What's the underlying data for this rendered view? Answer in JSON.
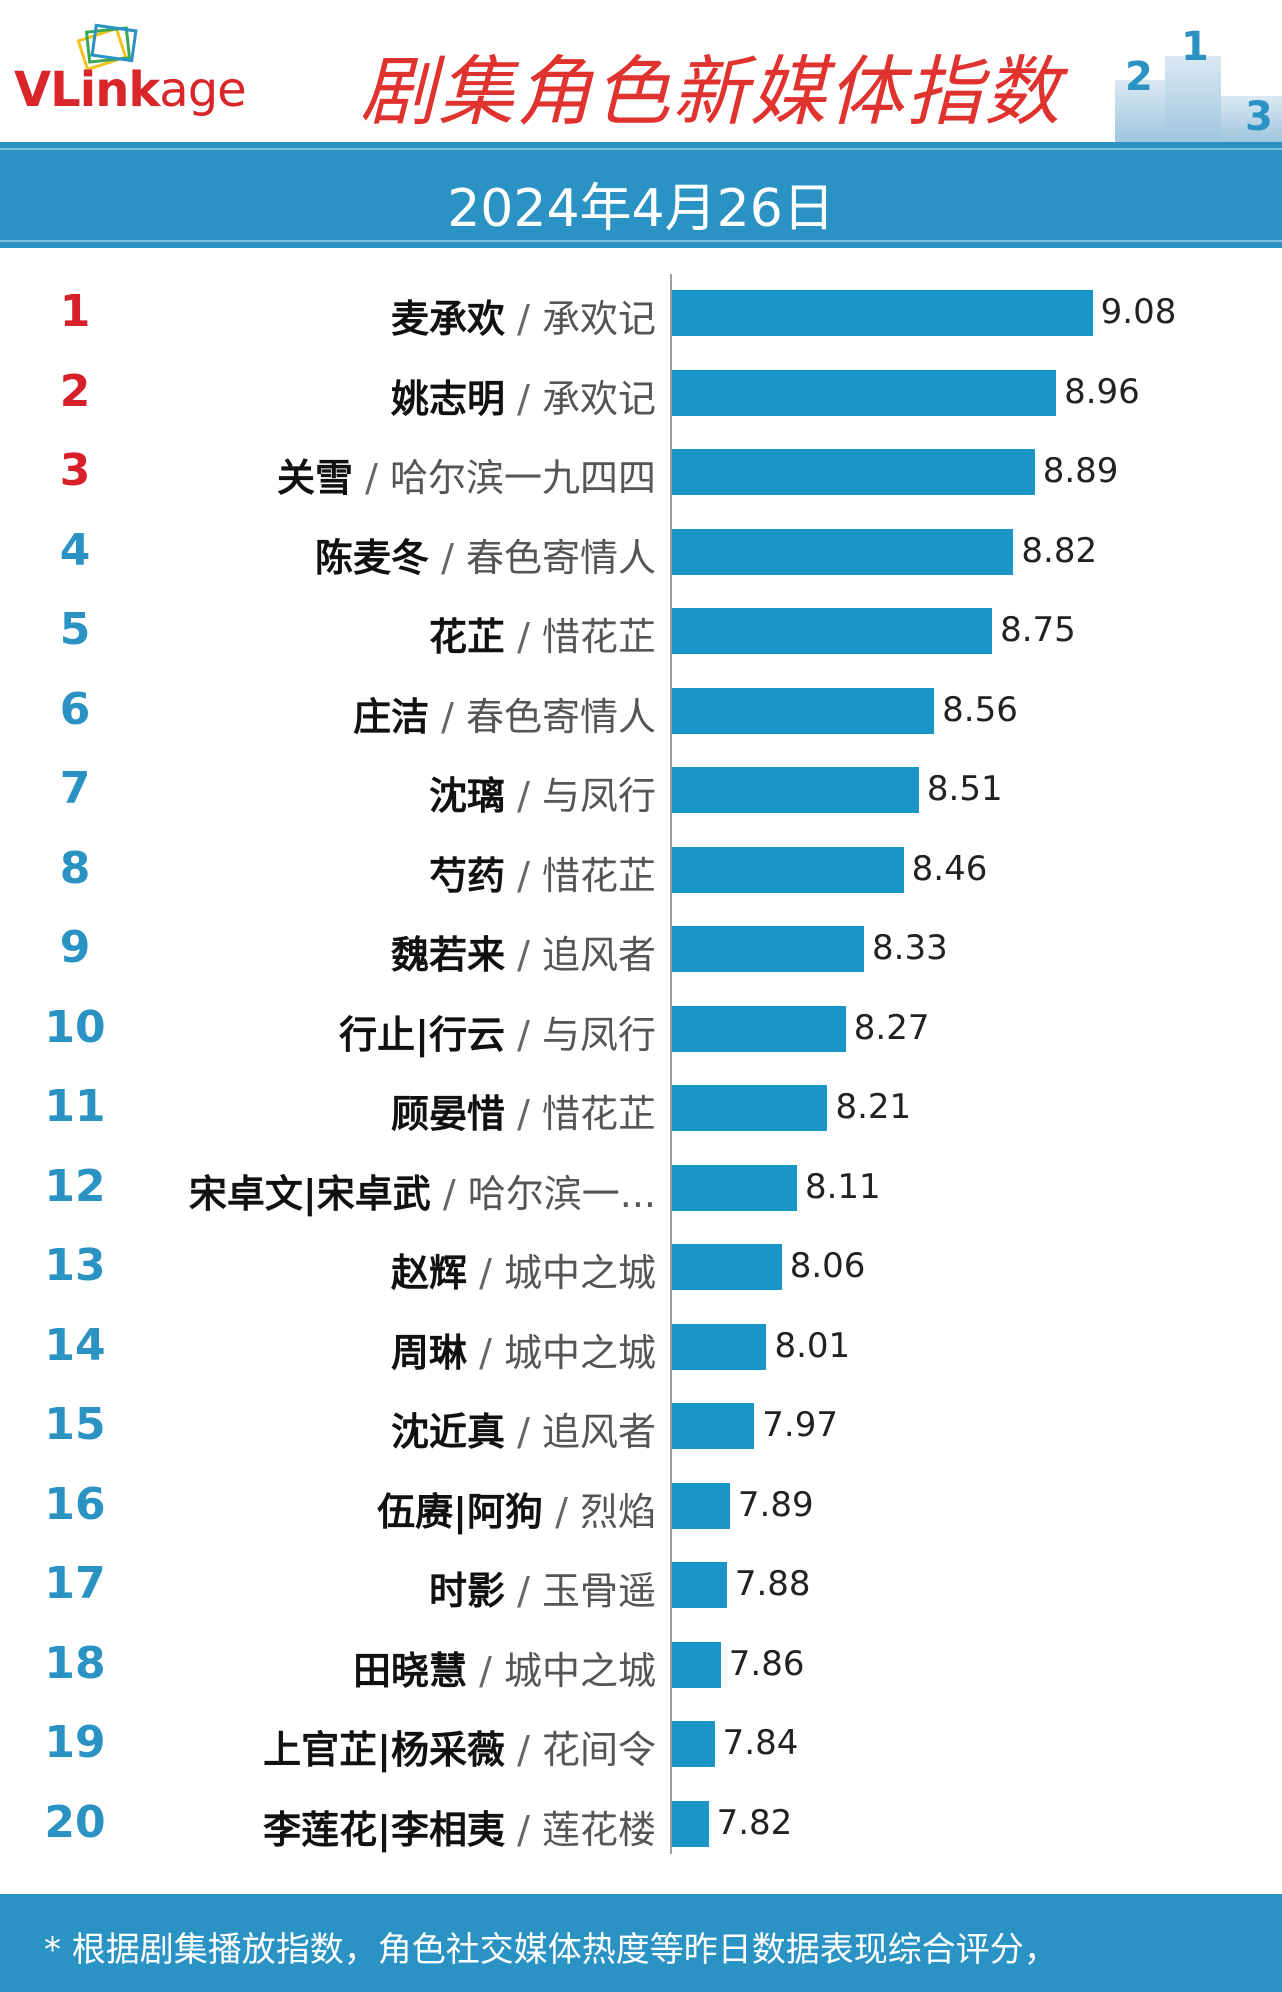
{
  "header": {
    "logo_text_v": "V",
    "logo_text_link": "Link",
    "logo_text_age": "age",
    "title": "剧集角色新媒体指数",
    "podium_labels": [
      "2",
      "1",
      "3"
    ],
    "colors": {
      "title": "#e0322e",
      "logo": "#d8262b",
      "accent": "#2a93c3"
    }
  },
  "date": "2024年4月26日",
  "chart_data": {
    "type": "bar",
    "orientation": "horizontal",
    "title": "剧集角色新媒体指数",
    "subtitle": "2024年4月26日",
    "xlim": [
      7.7,
      9.15
    ],
    "grid": false,
    "bar_color": "#1995c8",
    "rows": [
      {
        "rank": "1",
        "name": "麦承欢",
        "drama": "承欢记",
        "value": 9.08,
        "value_label": "9.08"
      },
      {
        "rank": "2",
        "name": "姚志明",
        "drama": "承欢记",
        "value": 8.96,
        "value_label": "8.96"
      },
      {
        "rank": "3",
        "name": "关雪",
        "drama": "哈尔滨一九四四",
        "value": 8.89,
        "value_label": "8.89"
      },
      {
        "rank": "4",
        "name": "陈麦冬",
        "drama": "春色寄情人",
        "value": 8.82,
        "value_label": "8.82"
      },
      {
        "rank": "5",
        "name": "花芷",
        "drama": "惜花芷",
        "value": 8.75,
        "value_label": "8.75"
      },
      {
        "rank": "6",
        "name": "庄洁",
        "drama": "春色寄情人",
        "value": 8.56,
        "value_label": "8.56"
      },
      {
        "rank": "7",
        "name": "沈璃",
        "drama": "与凤行",
        "value": 8.51,
        "value_label": "8.51"
      },
      {
        "rank": "8",
        "name": "芍药",
        "drama": "惜花芷",
        "value": 8.46,
        "value_label": "8.46"
      },
      {
        "rank": "9",
        "name": "魏若来",
        "drama": "追风者",
        "value": 8.33,
        "value_label": "8.33"
      },
      {
        "rank": "10",
        "name": "行止|行云",
        "drama": "与凤行",
        "value": 8.27,
        "value_label": "8.27"
      },
      {
        "rank": "11",
        "name": "顾晏惜",
        "drama": "惜花芷",
        "value": 8.21,
        "value_label": "8.21"
      },
      {
        "rank": "12",
        "name": "宋卓文|宋卓武",
        "drama": "哈尔滨一...",
        "value": 8.11,
        "value_label": "8.11"
      },
      {
        "rank": "13",
        "name": "赵辉",
        "drama": "城中之城",
        "value": 8.06,
        "value_label": "8.06"
      },
      {
        "rank": "14",
        "name": "周琳",
        "drama": "城中之城",
        "value": 8.01,
        "value_label": "8.01"
      },
      {
        "rank": "15",
        "name": "沈近真",
        "drama": "追风者",
        "value": 7.97,
        "value_label": "7.97"
      },
      {
        "rank": "16",
        "name": "伍赓|阿狗",
        "drama": "烈焰",
        "value": 7.89,
        "value_label": "7.89"
      },
      {
        "rank": "17",
        "name": "时影",
        "drama": "玉骨遥",
        "value": 7.88,
        "value_label": "7.88"
      },
      {
        "rank": "18",
        "name": "田晓慧",
        "drama": "城中之城",
        "value": 7.86,
        "value_label": "7.86"
      },
      {
        "rank": "19",
        "name": "上官芷|杨采薇",
        "drama": "花间令",
        "value": 7.84,
        "value_label": "7.84"
      },
      {
        "rank": "20",
        "name": "李莲花|李相夷",
        "drama": "莲花楼",
        "value": 7.82,
        "value_label": "7.82"
      }
    ]
  },
  "footer": {
    "note": "* 根据剧集播放指数，角色社交媒体热度等昨日数据表现综合评分，"
  }
}
